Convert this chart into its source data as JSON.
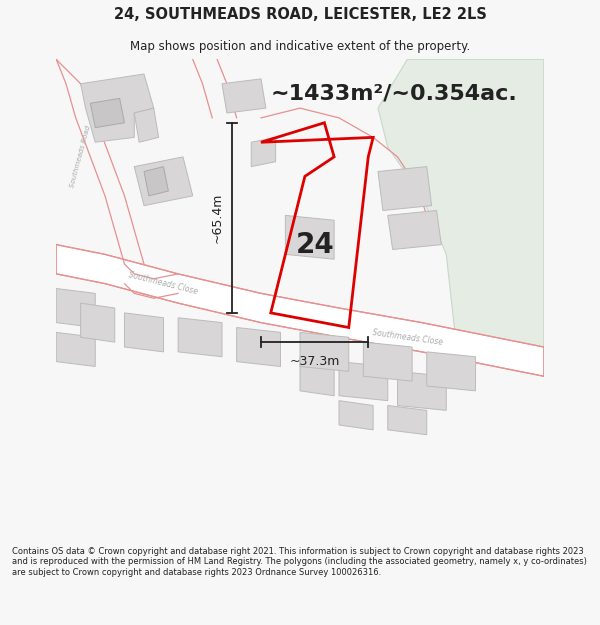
{
  "title_line1": "24, SOUTHMEADS ROAD, LEICESTER, LE2 2LS",
  "title_line2": "Map shows position and indicative extent of the property.",
  "area_text": "~1433m²/~0.354ac.",
  "label_number": "24",
  "dim_height": "~65.4m",
  "dim_width": "~37.3m",
  "road_label_close1": "Southmeads Close",
  "road_label_close2": "Southmeads Close",
  "road_label_south": "Southmeads Road",
  "footer_text": "Contains OS data © Crown copyright and database right 2021. This information is subject to Crown copyright and database rights 2023 and is reproduced with the permission of HM Land Registry. The polygons (including the associated geometry, namely x, y co-ordinates) are subject to Crown copyright and database rights 2023 Ordnance Survey 100026316.",
  "bg_color": "#f7f7f7",
  "map_bg": "#f2f0f0",
  "road_fill": "#ffffff",
  "building_fill": "#d8d6d6",
  "building_stroke": "#bbbbbb",
  "road_stroke": "#e89090",
  "property_stroke": "#dd0000",
  "property_fill": "none",
  "green_fill": "#e4ece4",
  "green_stroke": "#c8d8c8",
  "dim_color": "#222222",
  "text_color": "#222222",
  "road_label_color": "#aaaaaa",
  "title_fontsize": 10.5,
  "subtitle_fontsize": 8.5,
  "area_fontsize": 16,
  "number_fontsize": 20,
  "dim_fontsize": 9,
  "footer_fontsize": 6.0
}
